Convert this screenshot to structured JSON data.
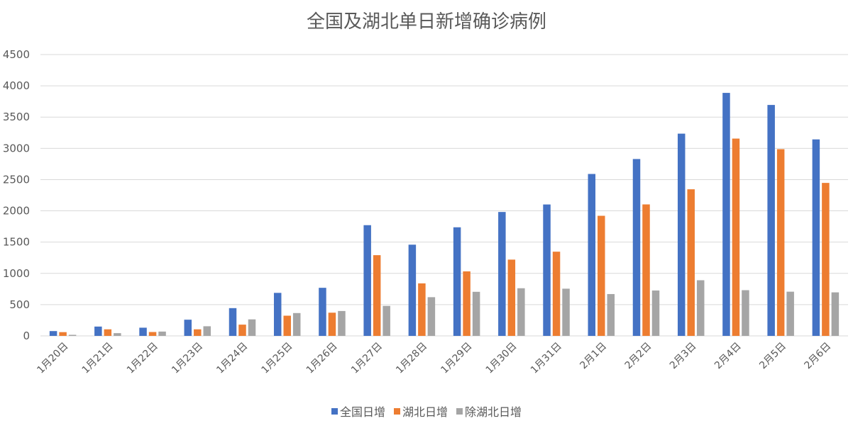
{
  "chart_data": {
    "type": "bar",
    "title": "全国及湖北单日新增确诊病例",
    "xlabel": "",
    "ylabel": "",
    "ylim": [
      0,
      4500
    ],
    "yticks": [
      0,
      500,
      1000,
      1500,
      2000,
      2500,
      3000,
      3500,
      4000,
      4500
    ],
    "grid": true,
    "legend_position": "bottom",
    "categories": [
      "1月20日",
      "1月21日",
      "1月22日",
      "1月23日",
      "1月24日",
      "1月25日",
      "1月26日",
      "1月27日",
      "1月28日",
      "1月29日",
      "1月30日",
      "1月31日",
      "2月1日",
      "2月2日",
      "2月3日",
      "2月4日",
      "2月5日",
      "2月6日"
    ],
    "series": [
      {
        "name": "全国日增",
        "color": "#4472C4",
        "values": [
          77,
          149,
          131,
          259,
          444,
          688,
          769,
          1771,
          1459,
          1737,
          1982,
          2102,
          2590,
          2829,
          3235,
          3887,
          3694,
          3143
        ]
      },
      {
        "name": "湖北日增",
        "color": "#ED7D31",
        "values": [
          60,
          105,
          62,
          105,
          180,
          323,
          371,
          1291,
          840,
          1032,
          1220,
          1347,
          1921,
          2103,
          2345,
          3156,
          2987,
          2447
        ]
      },
      {
        "name": "除湖北日增",
        "color": "#A5A5A5",
        "values": [
          17,
          44,
          69,
          154,
          264,
          365,
          398,
          480,
          619,
          705,
          762,
          755,
          669,
          726,
          890,
          731,
          707,
          696
        ]
      }
    ]
  }
}
